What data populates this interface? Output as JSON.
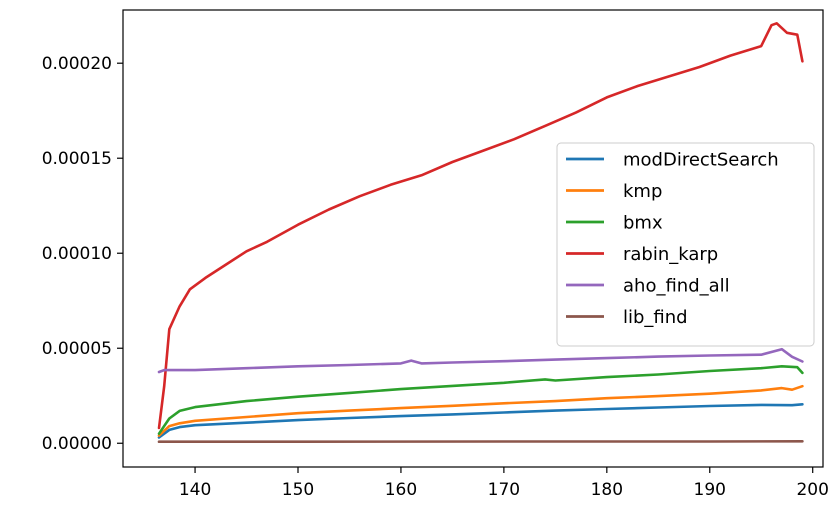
{
  "chart_data": {
    "type": "line",
    "title": "",
    "xlabel": "",
    "ylabel": "",
    "xlim": [
      133,
      201
    ],
    "ylim": [
      -1.25e-05,
      0.000228
    ],
    "x_ticks": [
      140,
      150,
      160,
      170,
      180,
      190,
      200
    ],
    "x_tick_labels": [
      "140",
      "150",
      "160",
      "170",
      "180",
      "190",
      "200"
    ],
    "y_ticks": [
      0.0,
      5e-05,
      0.0001,
      0.00015,
      0.0002
    ],
    "y_tick_labels": [
      "0.00000",
      "0.00005",
      "0.00010",
      "0.00015",
      "0.00020"
    ],
    "grid": false,
    "legend_position": "center-right",
    "series": [
      {
        "name": "modDirectSearch",
        "color": "#1f77b4",
        "points": [
          [
            136.5,
            3e-06
          ],
          [
            137.5,
            7e-06
          ],
          [
            138.5,
            8.5e-06
          ],
          [
            140,
            9.5e-06
          ],
          [
            145,
            1.08e-05
          ],
          [
            150,
            1.22e-05
          ],
          [
            155,
            1.33e-05
          ],
          [
            160,
            1.43e-05
          ],
          [
            165,
            1.52e-05
          ],
          [
            170,
            1.62e-05
          ],
          [
            175,
            1.72e-05
          ],
          [
            180,
            1.8e-05
          ],
          [
            185,
            1.88e-05
          ],
          [
            190,
            1.96e-05
          ],
          [
            195,
            2.02e-05
          ],
          [
            198,
            2e-05
          ],
          [
            199,
            2.05e-05
          ]
        ]
      },
      {
        "name": "kmp",
        "color": "#ff7f0e",
        "points": [
          [
            136.5,
            4e-06
          ],
          [
            137.5,
            9e-06
          ],
          [
            138.5,
            1.05e-05
          ],
          [
            140,
            1.18e-05
          ],
          [
            145,
            1.38e-05
          ],
          [
            150,
            1.58e-05
          ],
          [
            155,
            1.72e-05
          ],
          [
            160,
            1.85e-05
          ],
          [
            165,
            1.97e-05
          ],
          [
            170,
            2.1e-05
          ],
          [
            175,
            2.22e-05
          ],
          [
            180,
            2.37e-05
          ],
          [
            185,
            2.48e-05
          ],
          [
            190,
            2.61e-05
          ],
          [
            195,
            2.78e-05
          ],
          [
            197,
            2.9e-05
          ],
          [
            198,
            2.82e-05
          ],
          [
            199,
            3e-05
          ]
        ]
      },
      {
        "name": "bmx",
        "color": "#2ca02c",
        "points": [
          [
            136.5,
            5e-06
          ],
          [
            137.5,
            1.3e-05
          ],
          [
            138.5,
            1.7e-05
          ],
          [
            140,
            1.9e-05
          ],
          [
            145,
            2.22e-05
          ],
          [
            150,
            2.45e-05
          ],
          [
            155,
            2.65e-05
          ],
          [
            160,
            2.85e-05
          ],
          [
            165,
            3.02e-05
          ],
          [
            170,
            3.18e-05
          ],
          [
            174,
            3.36e-05
          ],
          [
            175,
            3.3e-05
          ],
          [
            180,
            3.48e-05
          ],
          [
            185,
            3.62e-05
          ],
          [
            190,
            3.8e-05
          ],
          [
            195,
            3.95e-05
          ],
          [
            197,
            4.05e-05
          ],
          [
            198.5,
            4e-05
          ],
          [
            199,
            3.7e-05
          ]
        ]
      },
      {
        "name": "rabin_karp",
        "color": "#d62728",
        "points": [
          [
            136.5,
            8e-06
          ],
          [
            137,
            3e-05
          ],
          [
            137.5,
            6e-05
          ],
          [
            138.5,
            7.2e-05
          ],
          [
            139.5,
            8.1e-05
          ],
          [
            141,
            8.7e-05
          ],
          [
            143,
            9.4e-05
          ],
          [
            145,
            0.000101
          ],
          [
            147,
            0.000106
          ],
          [
            150,
            0.000115
          ],
          [
            153,
            0.000123
          ],
          [
            156,
            0.00013
          ],
          [
            159,
            0.000136
          ],
          [
            162,
            0.000141
          ],
          [
            165,
            0.000148
          ],
          [
            168,
            0.000154
          ],
          [
            171,
            0.00016
          ],
          [
            174,
            0.000167
          ],
          [
            177,
            0.000174
          ],
          [
            180,
            0.000182
          ],
          [
            183,
            0.000188
          ],
          [
            186,
            0.000193
          ],
          [
            189,
            0.000198
          ],
          [
            192,
            0.000204
          ],
          [
            195,
            0.000209
          ],
          [
            196,
            0.00022
          ],
          [
            196.5,
            0.000221
          ],
          [
            197.5,
            0.000216
          ],
          [
            198.5,
            0.000215
          ],
          [
            199,
            0.000201
          ]
        ]
      },
      {
        "name": "aho_find_all",
        "color": "#9467bd",
        "points": [
          [
            136.5,
            3.75e-05
          ],
          [
            137,
            3.85e-05
          ],
          [
            140,
            3.85e-05
          ],
          [
            145,
            3.95e-05
          ],
          [
            150,
            4.05e-05
          ],
          [
            155,
            4.12e-05
          ],
          [
            160,
            4.2e-05
          ],
          [
            161,
            4.35e-05
          ],
          [
            162,
            4.2e-05
          ],
          [
            165,
            4.25e-05
          ],
          [
            170,
            4.32e-05
          ],
          [
            175,
            4.4e-05
          ],
          [
            180,
            4.48e-05
          ],
          [
            185,
            4.56e-05
          ],
          [
            190,
            4.62e-05
          ],
          [
            195,
            4.66e-05
          ],
          [
            197,
            4.95e-05
          ],
          [
            198,
            4.55e-05
          ],
          [
            199,
            4.3e-05
          ]
        ]
      },
      {
        "name": "lib_find",
        "color": "#8c564b",
        "points": [
          [
            136.5,
            8e-07
          ],
          [
            150,
            8e-07
          ],
          [
            170,
            9e-07
          ],
          [
            190,
            9e-07
          ],
          [
            199,
            1e-06
          ]
        ]
      }
    ]
  }
}
